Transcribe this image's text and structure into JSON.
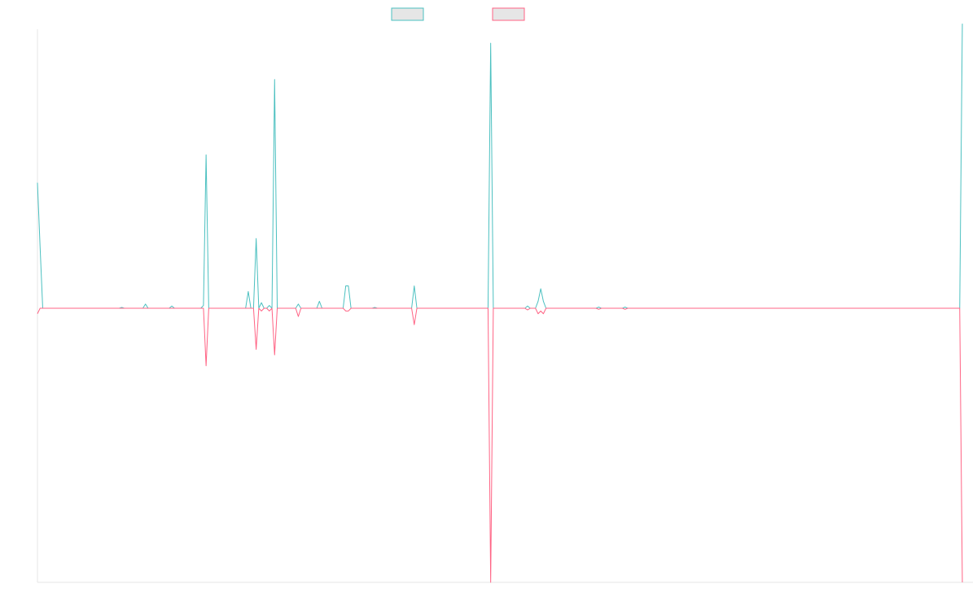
{
  "chart_data": {
    "type": "line",
    "title": "",
    "xlabel": "",
    "ylabel": "",
    "legend_position": "top-center",
    "grid": false,
    "axes_visible": "left-and-bottom-lines-only",
    "tick_labels_visible": false,
    "ylim": [
      -1,
      1
    ],
    "x_count": 351,
    "series": [
      {
        "color": "#4bc0c0",
        "legend_fill": "#e6e6e6",
        "peaks": [
          [
            0,
            0.45
          ],
          [
            1,
            0.22
          ],
          [
            32,
            0.003
          ],
          [
            41,
            0.015
          ],
          [
            51,
            0.008
          ],
          [
            63,
            0.01
          ],
          [
            64,
            0.55
          ],
          [
            80,
            0.06
          ],
          [
            83,
            0.25
          ],
          [
            85,
            0.02
          ],
          [
            88,
            0.01
          ],
          [
            90,
            0.82
          ],
          [
            99,
            0.015
          ],
          [
            107,
            0.025
          ],
          [
            117,
            0.08
          ],
          [
            118,
            0.08
          ],
          [
            128,
            0.003
          ],
          [
            143,
            0.08
          ],
          [
            172,
            0.95
          ],
          [
            186,
            0.008
          ],
          [
            190,
            0.025
          ],
          [
            191,
            0.07
          ],
          [
            192,
            0.025
          ],
          [
            213,
            0.004
          ],
          [
            223,
            0.004
          ],
          [
            351,
            1.02
          ]
        ]
      },
      {
        "color": "#ff6384",
        "legend_fill": "#e6e6e6",
        "peaks": [
          [
            0,
            -0.02
          ],
          [
            64,
            -0.21
          ],
          [
            83,
            -0.15
          ],
          [
            85,
            -0.01
          ],
          [
            88,
            -0.01
          ],
          [
            90,
            -0.17
          ],
          [
            99,
            -0.03
          ],
          [
            117,
            -0.01
          ],
          [
            118,
            -0.01
          ],
          [
            143,
            -0.06
          ],
          [
            172,
            -1.0
          ],
          [
            186,
            -0.006
          ],
          [
            190,
            -0.02
          ],
          [
            191,
            -0.01
          ],
          [
            192,
            -0.02
          ],
          [
            213,
            -0.004
          ],
          [
            223,
            -0.004
          ],
          [
            351,
            -1.0
          ]
        ]
      }
    ]
  }
}
